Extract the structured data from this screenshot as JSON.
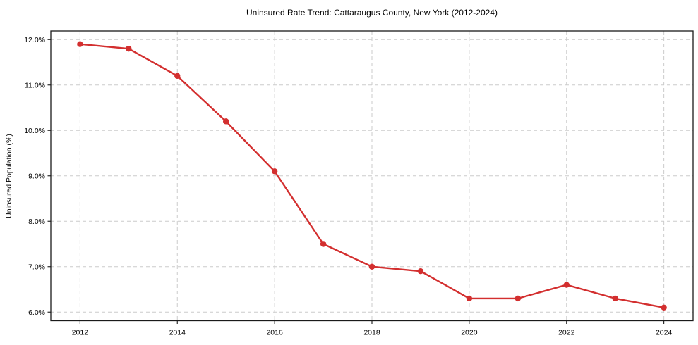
{
  "chart_data": {
    "type": "line",
    "title": "Uninsured Rate Trend: Cattaraugus County, New York (2012-2024)",
    "xlabel": "",
    "ylabel": "Uninsured Population (%)",
    "x": [
      2012,
      2013,
      2014,
      2015,
      2016,
      2017,
      2018,
      2019,
      2020,
      2021,
      2022,
      2023,
      2024
    ],
    "values": [
      11.9,
      11.8,
      11.2,
      10.2,
      9.1,
      7.5,
      7.0,
      6.9,
      6.3,
      6.3,
      6.6,
      6.3,
      6.1
    ],
    "xticks": [
      2012,
      2014,
      2016,
      2018,
      2020,
      2022,
      2024
    ],
    "yticks": [
      6.0,
      7.0,
      8.0,
      9.0,
      10.0,
      11.0,
      12.0
    ],
    "ytick_labels": [
      "6.0%",
      "7.0%",
      "8.0%",
      "9.0%",
      "10.0%",
      "11.0%",
      "12.0%"
    ],
    "xtick_labels": [
      "2012",
      "2014",
      "2016",
      "2018",
      "2020",
      "2022",
      "2024"
    ],
    "xlim": [
      2011.4,
      2024.6
    ],
    "ylim": [
      5.81,
      12.19
    ],
    "grid": true,
    "legend": false,
    "line_color": "#d32f2f",
    "marker": "circle",
    "marker_color": "#d32f2f",
    "grid_color": "#cbcbcb",
    "spine_color": "#1a1a1a",
    "background_color": "#ffffff"
  }
}
